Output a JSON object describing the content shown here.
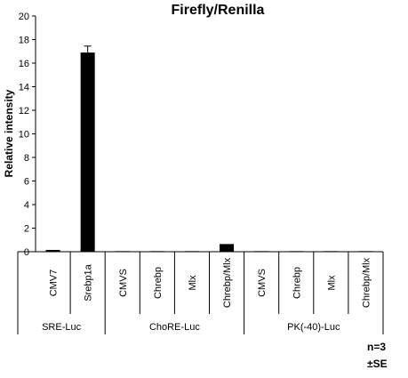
{
  "chart_data": {
    "type": "bar",
    "title": "Firefly/Renilla",
    "ylabel": "Relative intensity",
    "xlabel": "",
    "ylim": [
      0,
      20
    ],
    "yticks": [
      0,
      2,
      4,
      6,
      8,
      10,
      12,
      14,
      16,
      18,
      20
    ],
    "categories": [
      "CMV7",
      "Srebp1a",
      "CMVS",
      "Chrebp",
      "Mlx",
      "Chrebp/Mlx",
      "CMVS",
      "Chrebp",
      "Mlx",
      "Chrebp/Mlx"
    ],
    "values": [
      0.15,
      16.9,
      0.05,
      0.05,
      0.05,
      0.65,
      0.05,
      0.05,
      0.05,
      0.05
    ],
    "errors": [
      0.02,
      0.55,
      0.01,
      0.01,
      0.01,
      0.05,
      0.01,
      0.01,
      0.01,
      0.01
    ],
    "groups": [
      {
        "label": "SRE-Luc",
        "count": 2
      },
      {
        "label": "ChoRE-Luc",
        "count": 4
      },
      {
        "label": "PK(-40)-Luc",
        "count": 4
      }
    ],
    "bar_color": "#000000",
    "grid": false,
    "annotations": [
      "n=3",
      "±SE"
    ]
  }
}
